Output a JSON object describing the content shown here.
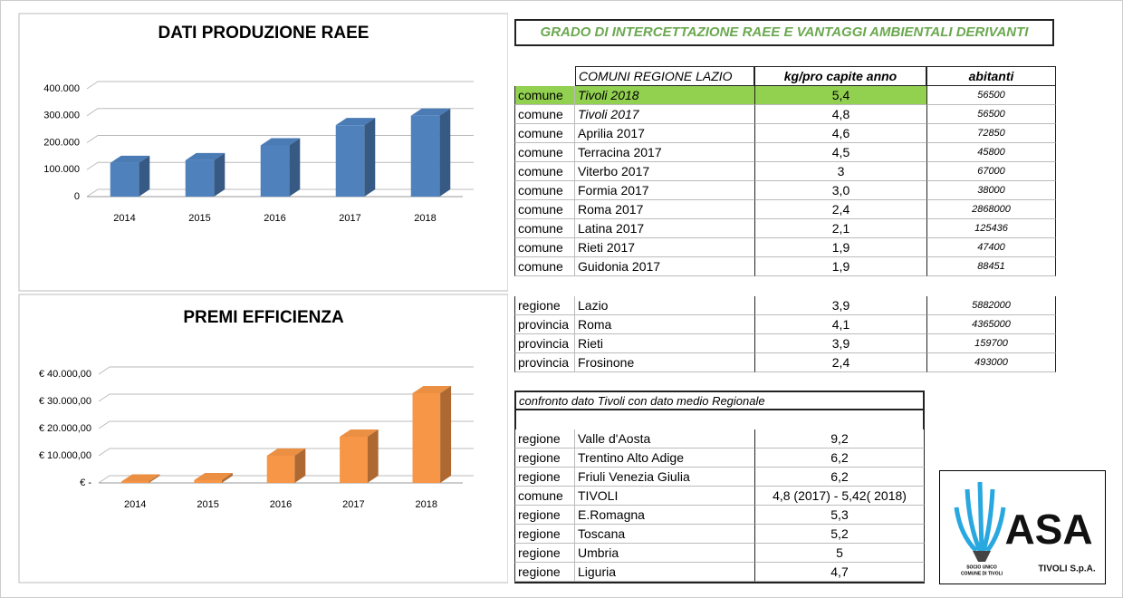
{
  "chart_data": [
    {
      "type": "bar",
      "title": "DATI PRODUZIONE RAEE",
      "categories": [
        "2014",
        "2015",
        "2016",
        "2017",
        "2018"
      ],
      "values": [
        125000,
        135000,
        190000,
        265000,
        300000
      ],
      "color": "#4f81bd",
      "ylim": [
        0,
        400000
      ],
      "yticks": [
        0,
        {
          "value": 100000,
          "label": "100.000"
        },
        {
          "value": 200000,
          "label": "200.000"
        },
        {
          "value": 300000,
          "label": "300.000"
        },
        {
          "value": 400000,
          "label": "400.000"
        }
      ],
      "grid": true
    },
    {
      "type": "bar",
      "title": "PREMI EFFICIENZA",
      "categories": [
        "2014",
        "2015",
        "2016",
        "2017",
        "2018"
      ],
      "values": [
        500,
        1000,
        10000,
        17000,
        33000
      ],
      "color": "#f79646",
      "ylim": [
        0,
        40000
      ],
      "yticks": [
        {
          "value": 0,
          "label": "€ -"
        },
        {
          "value": 10000,
          "label": "€ 10.000,00"
        },
        {
          "value": 20000,
          "label": "€ 20.000,00"
        },
        {
          "value": 30000,
          "label": "€ 30.000,00"
        },
        {
          "value": 40000,
          "label": "€ 40.000,00"
        }
      ],
      "grid": true
    }
  ],
  "table": {
    "title": "GRADO DI INTERCETTAZIONE RAEE E VANTAGGI AMBIENTALI DERIVANTI",
    "headers": [
      "COMUNI REGIONE LAZIO",
      "kg/pro capite anno",
      "abitanti"
    ],
    "rows": [
      [
        "comune",
        "Tivoli 2018",
        "5,4",
        "56500"
      ],
      [
        "comune",
        "Tivoli 2017",
        "4,8",
        "56500"
      ],
      [
        "comune",
        "Aprilia 2017",
        "4,6",
        "72850"
      ],
      [
        "comune",
        "Terracina 2017",
        "4,5",
        "45800"
      ],
      [
        "comune",
        "Viterbo 2017",
        "3",
        "67000"
      ],
      [
        "comune",
        "Formia 2017",
        "3,0",
        "38000"
      ],
      [
        "comune",
        "Roma 2017",
        "2,4",
        "2868000"
      ],
      [
        "comune",
        "Latina 2017",
        "2,1",
        "125436"
      ],
      [
        "comune",
        "Rieti 2017",
        "1,9",
        "47400"
      ],
      [
        "comune",
        "Guidonia 2017",
        "1,9",
        "88451"
      ]
    ],
    "regional_rows": [
      [
        "regione",
        "Lazio",
        "3,9",
        "5882000"
      ],
      [
        "provincia",
        "Roma",
        "4,1",
        "4365000"
      ],
      [
        "provincia",
        "Rieti",
        "3,9",
        "159700"
      ],
      [
        "provincia",
        "Frosinone",
        "2,4",
        "493000"
      ]
    ]
  },
  "comparison": {
    "title": "confronto dato Tivoli con dato medio Regionale",
    "rows": [
      [
        "regione",
        "Valle d'Aosta",
        "9,2"
      ],
      [
        "regione",
        "Trentino Alto Adige",
        "6,2"
      ],
      [
        "regione",
        "Friuli Venezia Giulia",
        "6,2"
      ],
      [
        "comune",
        "TIVOLI",
        "4,8 (2017)  -  5,42( 2018)"
      ],
      [
        "regione",
        "E.Romagna",
        "5,3"
      ],
      [
        "regione",
        "Toscana",
        "5,2"
      ],
      [
        "regione",
        "Umbria",
        "5"
      ],
      [
        "regione",
        "Liguria",
        "4,7"
      ]
    ]
  },
  "logo": {
    "name": "ASA",
    "company": "TIVOLI S.p.A.",
    "owner_1": "SOCIO UNICO",
    "owner_2": "COMUNE DI TIVOLI"
  }
}
